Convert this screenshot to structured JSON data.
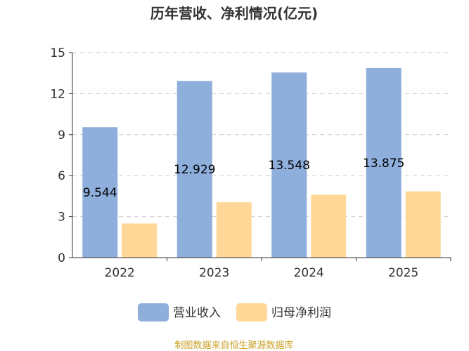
{
  "chart_data": {
    "type": "bar",
    "title": "历年营收、净利情况(亿元)",
    "categories": [
      "2022",
      "2023",
      "2024",
      "2025"
    ],
    "series": [
      {
        "name": "营业收入",
        "color": "#8eaedc",
        "values": [
          9.544,
          12.929,
          13.548,
          13.875
        ],
        "labels": [
          "9.544",
          "12.929",
          "13.548",
          "13.875"
        ]
      },
      {
        "name": "归母净利润",
        "color": "#ffd898",
        "values": [
          2.5,
          4.05,
          4.6,
          4.85
        ]
      }
    ],
    "ylim": [
      0,
      15
    ],
    "yticks": [
      "0",
      "3",
      "6",
      "9",
      "12",
      "15"
    ],
    "grid": true,
    "legend_position": "bottom"
  },
  "source": "制图数据来自恒生聚源数据库"
}
